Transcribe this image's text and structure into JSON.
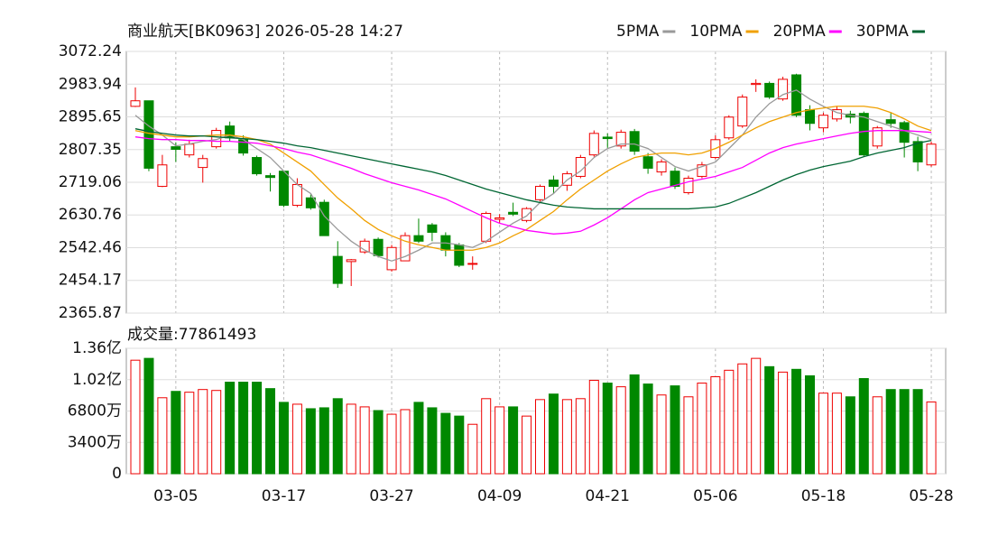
{
  "chart_data": [
    {
      "type": "candlestick",
      "title": "商业航天[BK0963] 2026-05-28 14:27",
      "up_color": "#ee0000",
      "down_color": "#008800",
      "grid": true,
      "ylim": [
        2365.87,
        3072.24
      ],
      "yticks": [
        2365.87,
        2454.17,
        2542.46,
        2630.76,
        2719.06,
        2807.35,
        2895.65,
        2983.94,
        3072.24
      ],
      "open": [
        2924,
        2939,
        2708,
        2815,
        2793,
        2759,
        2815,
        2871,
        2834,
        2786,
        2737,
        2749,
        2657,
        2677,
        2665,
        2519,
        2505,
        2531,
        2565,
        2483,
        2507,
        2575,
        2604,
        2575,
        2550,
        2498,
        2560,
        2619,
        2638,
        2616,
        2672,
        2725,
        2711,
        2735,
        2793,
        2841,
        2817,
        2856,
        2788,
        2747,
        2749,
        2691,
        2735,
        2786,
        2839,
        2871,
        2983,
        2986,
        2944,
        3009,
        2915,
        2866,
        2890,
        2903,
        2905,
        2817,
        2888,
        2880,
        2829,
        2766
      ],
      "high": [
        2975,
        2939,
        2793,
        2827,
        2834,
        2793,
        2866,
        2883,
        2846,
        2791,
        2744,
        2749,
        2730,
        2686,
        2672,
        2560,
        2512,
        2567,
        2570,
        2550,
        2584,
        2621,
        2609,
        2584,
        2555,
        2519,
        2640,
        2633,
        2664,
        2652,
        2713,
        2737,
        2749,
        2793,
        2859,
        2851,
        2861,
        2863,
        2798,
        2781,
        2759,
        2737,
        2774,
        2846,
        2900,
        2956,
        2997,
        2991,
        3004,
        3012,
        2927,
        2907,
        2924,
        2912,
        2910,
        2871,
        2907,
        2885,
        2842,
        2829
      ],
      "low": [
        2922,
        2749,
        2706,
        2774,
        2786,
        2718,
        2810,
        2830,
        2791,
        2737,
        2694,
        2652,
        2652,
        2645,
        2575,
        2434,
        2439,
        2526,
        2516,
        2478,
        2507,
        2555,
        2560,
        2519,
        2490,
        2483,
        2555,
        2609,
        2628,
        2611,
        2667,
        2689,
        2696,
        2730,
        2788,
        2812,
        2810,
        2793,
        2742,
        2737,
        2701,
        2686,
        2730,
        2781,
        2834,
        2866,
        2963,
        2944,
        2939,
        2895,
        2859,
        2854,
        2883,
        2878,
        2788,
        2810,
        2866,
        2786,
        2749,
        2761
      ],
      "close": [
        2939,
        2757,
        2766,
        2808,
        2822,
        2783,
        2859,
        2839,
        2798,
        2742,
        2732,
        2657,
        2713,
        2650,
        2575,
        2446,
        2510,
        2560,
        2521,
        2543,
        2575,
        2560,
        2584,
        2536,
        2495,
        2500,
        2635,
        2623,
        2633,
        2648,
        2708,
        2708,
        2742,
        2786,
        2851,
        2837,
        2854,
        2803,
        2757,
        2774,
        2708,
        2730,
        2766,
        2834,
        2895,
        2949,
        2986,
        2949,
        2997,
        2900,
        2878,
        2900,
        2915,
        2895,
        2793,
        2866,
        2878,
        2827,
        2774,
        2822
      ],
      "series": [
        {
          "name": "5PMA",
          "color": "#999999",
          "values": [
            2899.9,
            2870.8,
            2846.5,
            2817.4,
            2822.2,
            2829.5,
            2834.3,
            2846.5,
            2834.3,
            2810.1,
            2785.8,
            2749.4,
            2712.9,
            2688.7,
            2628.0,
            2591.6,
            2560.0,
            2535.8,
            2518.8,
            2506.7,
            2518.8,
            2535.8,
            2555.2,
            2555.2,
            2550.3,
            2543.1,
            2560.0,
            2584.3,
            2608.6,
            2628.0,
            2664.4,
            2688.7,
            2725.1,
            2749.4,
            2785.8,
            2810.1,
            2822.2,
            2822.2,
            2810.1,
            2785.8,
            2761.5,
            2749.4,
            2761.5,
            2773.7,
            2810.1,
            2846.5,
            2895.0,
            2931.4,
            2955.7,
            2967.9,
            2943.6,
            2924.2,
            2907.2,
            2899.9,
            2895.0,
            2882.9,
            2870.8,
            2858.6,
            2846.5,
            2834.3
          ]
        },
        {
          "name": "10PMA",
          "color": "#f0a000",
          "values": [
            2858.6,
            2851.3,
            2846.5,
            2841.6,
            2841.6,
            2844.1,
            2846.5,
            2846.5,
            2841.6,
            2834.3,
            2822.2,
            2798.0,
            2773.7,
            2749.4,
            2712.9,
            2676.6,
            2647.4,
            2615.9,
            2591.6,
            2574.6,
            2560.0,
            2550.3,
            2543.1,
            2535.8,
            2535.8,
            2535.8,
            2543.1,
            2555.2,
            2574.6,
            2591.6,
            2615.9,
            2640.1,
            2671.7,
            2700.8,
            2725.1,
            2749.4,
            2768.8,
            2785.8,
            2793.1,
            2798.0,
            2798.0,
            2793.1,
            2798.0,
            2810.1,
            2827.1,
            2846.5,
            2865.9,
            2882.9,
            2895.0,
            2907.2,
            2914.5,
            2919.3,
            2924.2,
            2924.2,
            2924.2,
            2919.3,
            2907.2,
            2890.2,
            2870.8,
            2858.6
          ]
        },
        {
          "name": "20PMA",
          "color": "#ff00ff",
          "values": [
            2841.6,
            2836.8,
            2834.3,
            2834.3,
            2831.9,
            2831.9,
            2829.5,
            2829.5,
            2827.1,
            2824.6,
            2817.4,
            2810.1,
            2800.4,
            2793.1,
            2781.0,
            2768.8,
            2756.7,
            2742.1,
            2730.0,
            2717.8,
            2708.1,
            2698.4,
            2686.3,
            2674.1,
            2657.2,
            2640.1,
            2623.2,
            2608.6,
            2598.9,
            2589.2,
            2584.3,
            2579.5,
            2581.9,
            2586.8,
            2603.7,
            2623.2,
            2647.4,
            2671.7,
            2691.1,
            2700.8,
            2710.6,
            2720.3,
            2727.6,
            2734.8,
            2747.0,
            2759.1,
            2778.5,
            2798.0,
            2812.5,
            2822.2,
            2829.5,
            2836.8,
            2844.1,
            2851.3,
            2856.2,
            2858.6,
            2858.6,
            2858.6,
            2856.2,
            2853.8
          ]
        },
        {
          "name": "30PMA",
          "color": "#006633",
          "values": [
            2863.5,
            2856.2,
            2851.3,
            2846.5,
            2844.1,
            2844.1,
            2841.6,
            2839.2,
            2836.8,
            2834.3,
            2829.5,
            2824.6,
            2817.4,
            2812.5,
            2805.2,
            2798.0,
            2790.7,
            2783.4,
            2776.1,
            2768.8,
            2761.5,
            2754.3,
            2747.0,
            2737.2,
            2725.1,
            2712.9,
            2700.8,
            2691.1,
            2681.4,
            2671.7,
            2664.4,
            2657.2,
            2652.3,
            2649.9,
            2647.4,
            2647.4,
            2647.4,
            2647.4,
            2647.4,
            2647.4,
            2647.4,
            2647.4,
            2649.9,
            2652.3,
            2662.0,
            2676.6,
            2691.1,
            2708.1,
            2725.1,
            2739.7,
            2751.8,
            2761.5,
            2768.8,
            2776.1,
            2788.2,
            2798.0,
            2805.2,
            2812.5,
            2824.6,
            2831.9
          ]
        }
      ]
    },
    {
      "type": "bar",
      "title": "成交量:",
      "grid": true,
      "categories": [
        null,
        null,
        null,
        "03-05",
        null,
        null,
        null,
        null,
        null,
        null,
        null,
        "03-17",
        null,
        null,
        null,
        null,
        null,
        null,
        null,
        "03-27",
        null,
        null,
        null,
        null,
        null,
        null,
        null,
        "04-09",
        null,
        null,
        null,
        null,
        null,
        null,
        null,
        "04-21",
        null,
        null,
        null,
        null,
        null,
        null,
        null,
        "05-06",
        null,
        null,
        null,
        null,
        null,
        null,
        null,
        "05-18",
        null,
        null,
        null,
        null,
        null,
        null,
        null,
        "05-28"
      ],
      "values": [
        123100000,
        125100000,
        82400000,
        89300000,
        88400000,
        91300000,
        90300000,
        99300000,
        99300000,
        99300000,
        92300000,
        77400000,
        75400000,
        70500000,
        71500000,
        81400000,
        75400000,
        72500000,
        68500000,
        64500000,
        69500000,
        77400000,
        71500000,
        65500000,
        62500000,
        53600000,
        81400000,
        72500000,
        72500000,
        62500000,
        80400000,
        86400000,
        80400000,
        81400000,
        101300000,
        98300000,
        94300000,
        107200000,
        97300000,
        85400000,
        95300000,
        83400000,
        98300000,
        105200000,
        112200000,
        119100000,
        125100000,
        116100000,
        110200000,
        113200000,
        106200000,
        87400000,
        87400000,
        83400000,
        103200000,
        83400000,
        91300000,
        91300000,
        91300000,
        77861493
      ],
      "ylim": [
        0,
        136000000
      ],
      "yticks": [
        0,
        {
          "value": 34000000,
          "label": "3400万"
        },
        {
          "value": 68000000,
          "label": "6800万"
        },
        {
          "value": 102000000,
          "label": "1.02亿"
        },
        {
          "value": 136000000,
          "label": "1.36亿"
        }
      ]
    }
  ]
}
